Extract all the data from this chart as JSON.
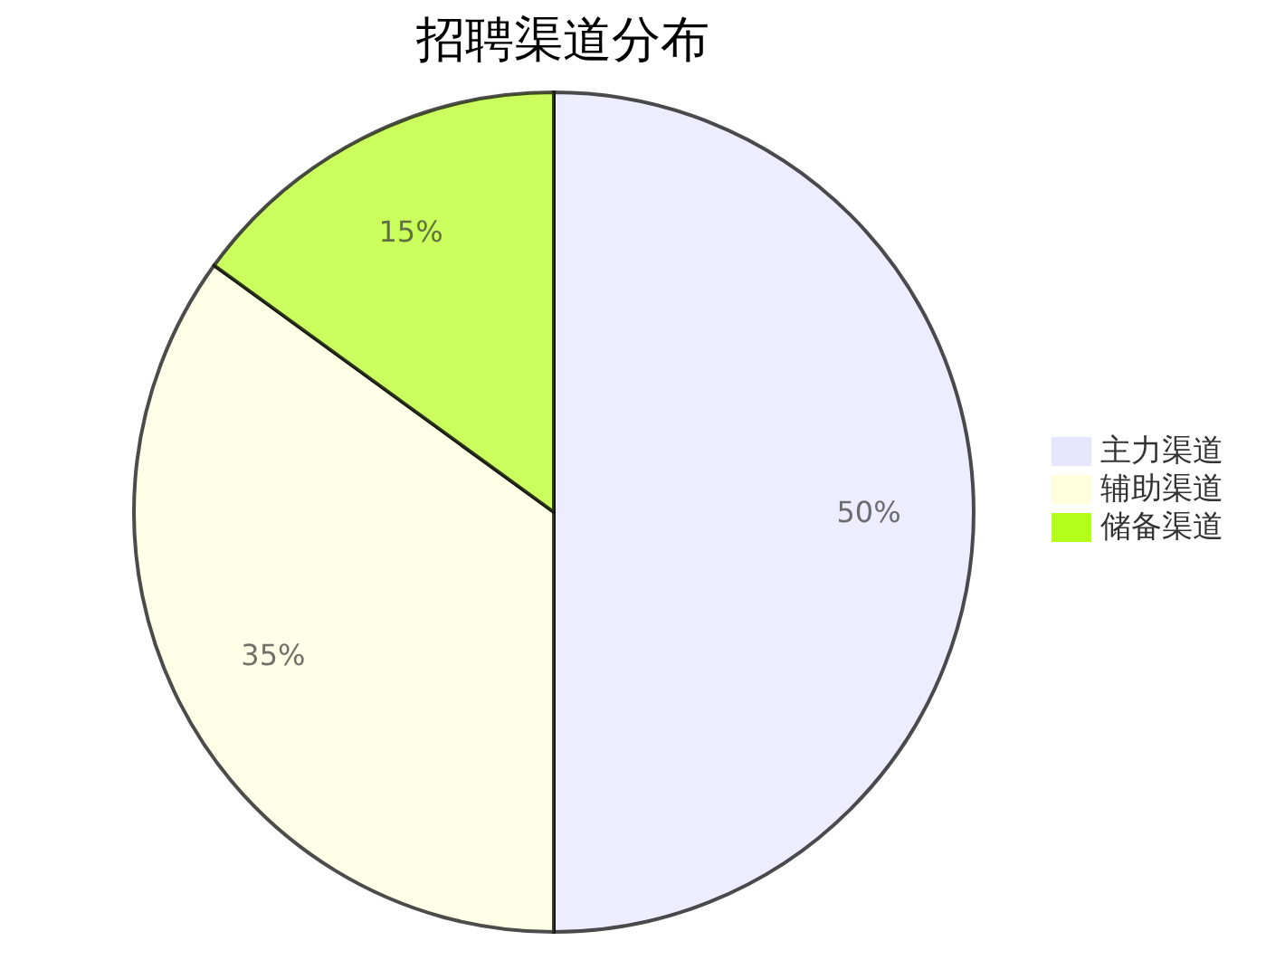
{
  "chart_data": {
    "type": "pie",
    "title": "招聘渠道分布",
    "categories": [
      "主力渠道",
      "辅助渠道",
      "储备渠道"
    ],
    "values": [
      50,
      35,
      15
    ],
    "colors": [
      "#e6e6ff",
      "#ffffde",
      "#b3ff1a"
    ],
    "value_labels": [
      "50%",
      "35%",
      "15%"
    ],
    "legend": "right"
  }
}
